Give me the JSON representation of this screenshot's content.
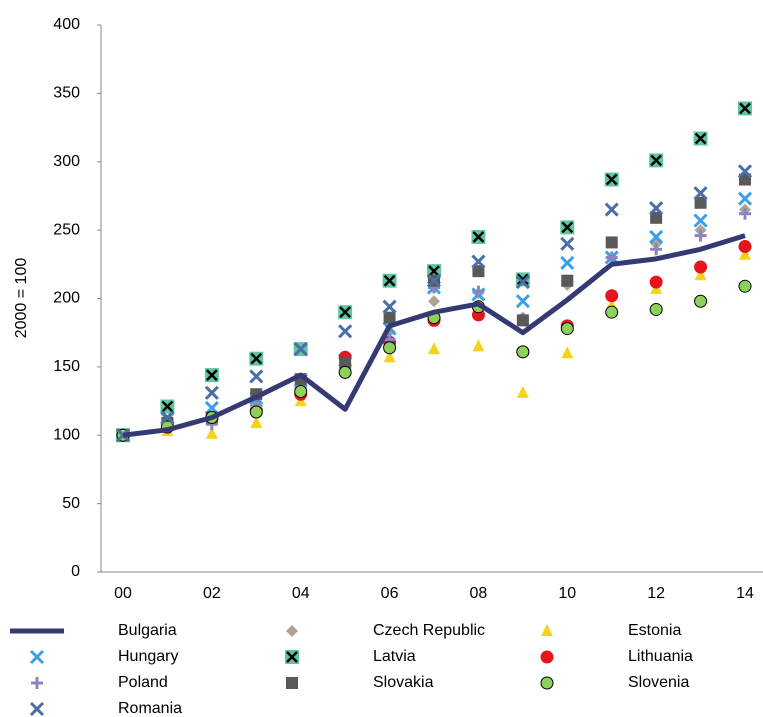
{
  "chart_data": {
    "type": "line",
    "y_label": "2000 = 100",
    "categories": [
      "00",
      null,
      "02",
      null,
      "04",
      null,
      "06",
      null,
      "08",
      null,
      "10",
      null,
      "12",
      null,
      "14"
    ],
    "ylim": [
      0,
      400
    ],
    "yticks": [
      0,
      50,
      100,
      150,
      200,
      250,
      300,
      350,
      400
    ],
    "grid": false,
    "series": [
      {
        "name": "Bulgaria",
        "color": "#363a73",
        "marker": "line",
        "values": [
          100,
          104,
          113,
          128,
          144,
          119,
          180,
          190,
          196,
          175,
          199,
          225,
          229,
          236,
          246
        ]
      },
      {
        "name": "Czech Republic",
        "color": "#b0a394",
        "marker": "diamond",
        "values": [
          100,
          107,
          111,
          124,
          140,
          152,
          176,
          198,
          204,
          186,
          210,
          230,
          240,
          250,
          265
        ]
      },
      {
        "name": "Estonia",
        "color": "#f5d21c",
        "marker": "triangle",
        "values": [
          100,
          103,
          101,
          109,
          125,
          150,
          157,
          163,
          165,
          131,
          160,
          195,
          207,
          217,
          232
        ]
      },
      {
        "name": "Hungary",
        "color": "#3aa0e8",
        "marker": "x",
        "values": [
          100,
          112,
          120,
          127,
          140,
          155,
          178,
          208,
          203,
          198,
          226,
          230,
          245,
          257,
          273
        ]
      },
      {
        "name": "Latvia",
        "color": "#5fc7a0",
        "marker": "square-x",
        "values": [
          100,
          121,
          144,
          156,
          163,
          190,
          213,
          220,
          245,
          214,
          252,
          287,
          301,
          317,
          339
        ]
      },
      {
        "name": "Lithuania",
        "color": "#e8141c",
        "marker": "circle",
        "values": [
          100,
          106,
          112,
          118,
          130,
          157,
          168,
          184,
          188,
          161,
          180,
          202,
          212,
          223,
          238
        ]
      },
      {
        "name": "Poland",
        "color": "#8c84c0",
        "marker": "plus",
        "values": [
          100,
          107,
          108,
          121,
          135,
          150,
          170,
          208,
          205,
          185,
          213,
          230,
          236,
          246,
          262
        ]
      },
      {
        "name": "Slovakia",
        "color": "#595959",
        "marker": "square",
        "values": [
          100,
          109,
          113,
          130,
          141,
          153,
          186,
          213,
          220,
          184,
          213,
          241,
          259,
          270,
          287
        ]
      },
      {
        "name": "Slovenia",
        "color": "#8ed15a",
        "marker": "circle-outline",
        "values": [
          100,
          106,
          113,
          117,
          132,
          146,
          164,
          186,
          194,
          161,
          178,
          190,
          192,
          198,
          209
        ]
      },
      {
        "name": "Romania",
        "color": "#4a6fa8",
        "marker": "x",
        "values": [
          100,
          113,
          131,
          143,
          163,
          176,
          194,
          213,
          227,
          212,
          240,
          265,
          266,
          277,
          293
        ]
      }
    ]
  }
}
